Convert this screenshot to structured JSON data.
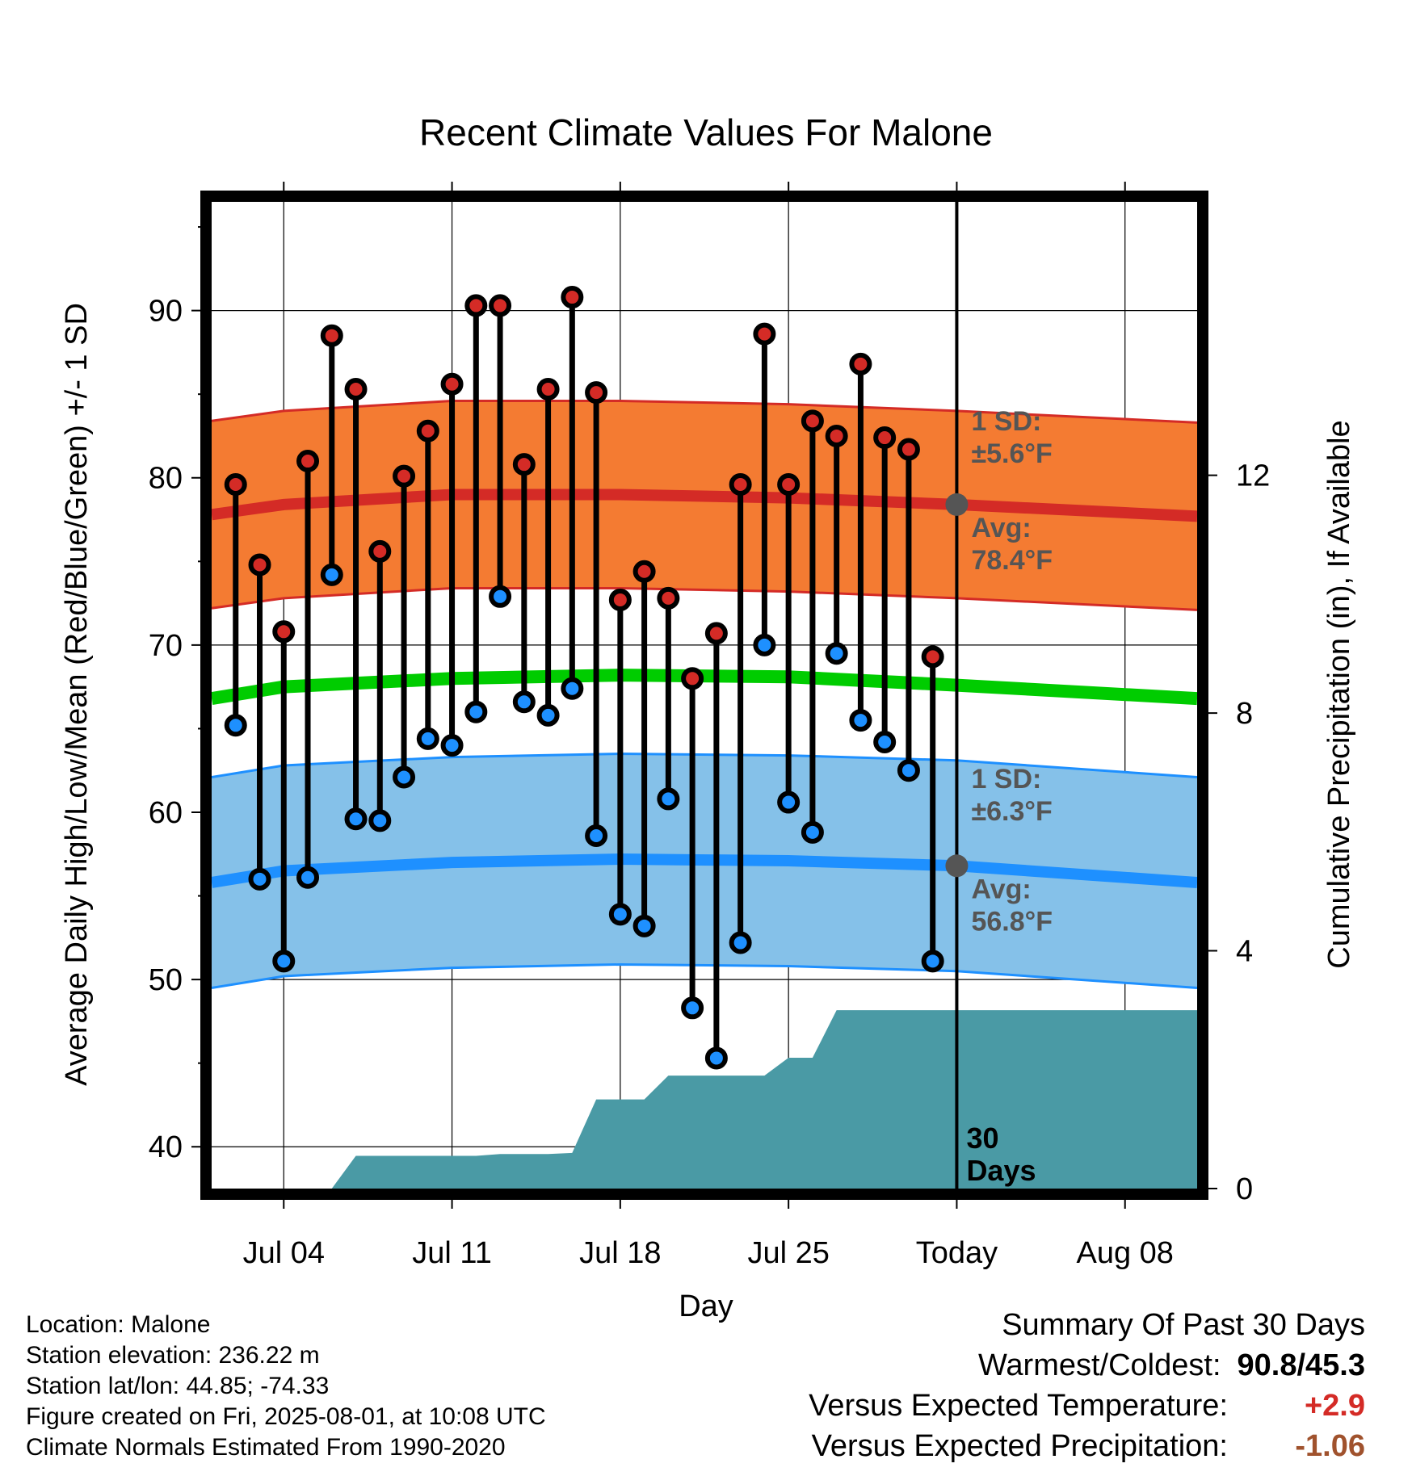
{
  "chart_data": {
    "type": "line",
    "title": "Recent Climate Values For Malone",
    "xlabel": "Day",
    "ylabel": "Average Daily High/Low/Mean (Red/Blue/Green) +/- 1 SD",
    "y2label": "Cumulative Precipitation (in), If Available",
    "xlim": [
      "2025-07-01",
      "2025-08-11"
    ],
    "ylim": [
      37.5,
      96.5
    ],
    "y2lim": [
      0,
      16.6
    ],
    "x_ticks": [
      {
        "date": "2025-07-04",
        "label": "Jul 04"
      },
      {
        "date": "2025-07-11",
        "label": "Jul 11"
      },
      {
        "date": "2025-07-18",
        "label": "Jul 18"
      },
      {
        "date": "2025-07-25",
        "label": "Jul 25"
      },
      {
        "date": "2025-08-01",
        "label": "Today"
      },
      {
        "date": "2025-08-08",
        "label": "Aug 08"
      }
    ],
    "y_ticks": [
      40,
      50,
      60,
      70,
      80,
      90
    ],
    "y2_ticks": [
      0,
      4,
      8,
      12
    ],
    "today": "2025-08-01",
    "grid": true,
    "normals": {
      "dates": [
        "2025-07-01",
        "2025-07-04",
        "2025-07-11",
        "2025-07-18",
        "2025-07-25",
        "2025-08-01",
        "2025-08-11"
      ],
      "high_avg": [
        77.8,
        78.4,
        79.0,
        79.0,
        78.8,
        78.4,
        77.7
      ],
      "high_sd": 5.6,
      "low_avg": [
        55.8,
        56.5,
        57.0,
        57.2,
        57.1,
        56.8,
        55.8
      ],
      "low_sd": 6.3,
      "mean_avg": [
        66.8,
        67.5,
        68.0,
        68.2,
        68.1,
        67.6,
        66.8
      ]
    },
    "series": [
      {
        "name": "High",
        "x": [
          "2025-07-02",
          "2025-07-03",
          "2025-07-04",
          "2025-07-05",
          "2025-07-06",
          "2025-07-07",
          "2025-07-08",
          "2025-07-09",
          "2025-07-10",
          "2025-07-11",
          "2025-07-12",
          "2025-07-13",
          "2025-07-14",
          "2025-07-15",
          "2025-07-16",
          "2025-07-17",
          "2025-07-18",
          "2025-07-19",
          "2025-07-20",
          "2025-07-21",
          "2025-07-22",
          "2025-07-23",
          "2025-07-24",
          "2025-07-25",
          "2025-07-26",
          "2025-07-27",
          "2025-07-28",
          "2025-07-29",
          "2025-07-30",
          "2025-07-31"
        ],
        "values": [
          79.6,
          74.8,
          70.8,
          81.0,
          88.5,
          85.3,
          75.6,
          80.1,
          82.8,
          85.6,
          90.3,
          90.3,
          80.8,
          85.3,
          90.8,
          85.1,
          72.7,
          74.4,
          72.8,
          68.0,
          70.7,
          79.6,
          88.6,
          79.6,
          83.4,
          82.5,
          86.8,
          82.4,
          81.7,
          69.3
        ]
      },
      {
        "name": "Low",
        "x": [
          "2025-07-02",
          "2025-07-03",
          "2025-07-04",
          "2025-07-05",
          "2025-07-06",
          "2025-07-07",
          "2025-07-08",
          "2025-07-09",
          "2025-07-10",
          "2025-07-11",
          "2025-07-12",
          "2025-07-13",
          "2025-07-14",
          "2025-07-15",
          "2025-07-16",
          "2025-07-17",
          "2025-07-18",
          "2025-07-19",
          "2025-07-20",
          "2025-07-21",
          "2025-07-22",
          "2025-07-23",
          "2025-07-24",
          "2025-07-25",
          "2025-07-26",
          "2025-07-27",
          "2025-07-28",
          "2025-07-29",
          "2025-07-30",
          "2025-07-31"
        ],
        "values": [
          65.2,
          56.0,
          51.1,
          56.1,
          74.2,
          59.6,
          59.5,
          62.1,
          64.4,
          64.0,
          66.0,
          72.9,
          66.6,
          65.8,
          67.4,
          58.6,
          53.9,
          53.2,
          60.8,
          48.3,
          45.3,
          52.2,
          70.0,
          60.6,
          58.8,
          69.5,
          65.5,
          64.2,
          62.5,
          51.1
        ]
      }
    ],
    "precipitation": {
      "x": [
        "2025-07-01",
        "2025-07-03",
        "2025-07-04",
        "2025-07-05",
        "2025-07-06",
        "2025-07-07",
        "2025-07-08",
        "2025-07-09",
        "2025-07-10",
        "2025-07-11",
        "2025-07-12",
        "2025-07-13",
        "2025-07-14",
        "2025-07-15",
        "2025-07-16",
        "2025-07-17",
        "2025-07-18",
        "2025-07-19",
        "2025-07-20",
        "2025-07-21",
        "2025-07-22",
        "2025-07-23",
        "2025-07-24",
        "2025-07-25",
        "2025-07-26",
        "2025-07-27",
        "2025-07-28",
        "2025-07-29",
        "2025-07-30",
        "2025-07-31",
        "2025-08-01",
        "2025-08-11"
      ],
      "values": [
        0,
        0,
        0,
        0,
        0,
        0.55,
        0.55,
        0.55,
        0.55,
        0.55,
        0.55,
        0.58,
        0.58,
        0.58,
        0.6,
        1.5,
        1.5,
        1.5,
        1.9,
        1.9,
        1.9,
        1.9,
        1.9,
        2.2,
        2.2,
        3.0,
        3.0,
        3.0,
        3.0,
        3.0,
        3.0,
        3.0
      ]
    },
    "annotations": [
      {
        "label": "1 SD:",
        "value": "±5.6°F"
      },
      {
        "label": "Avg:",
        "value": "78.4°F"
      },
      {
        "label": "1 SD:",
        "value": "±6.3°F"
      },
      {
        "label": "Avg:",
        "value": "56.8°F"
      },
      {
        "label": "30",
        "value": "Days"
      }
    ],
    "colors": {
      "high": "#d42b26",
      "high_band": "#f47b32",
      "low": "#1e90ff",
      "low_band": "#85c1e9",
      "mean": "#00cc00",
      "precip": "#4a9aa5",
      "annotation": "#555555"
    }
  },
  "info": {
    "location": "Location: Malone",
    "elevation": "Station elevation: 236.22 m",
    "latlon": "Station lat/lon: 44.85; -74.33",
    "created": "Figure created on Fri, 2025-08-01, at 10:08 UTC",
    "normals": "Climate Normals Estimated From 1990-2020"
  },
  "summary": {
    "title": "Summary Of Past 30 Days",
    "warmest_label": "Warmest/Coldest:",
    "warmest_value": "90.8/45.3",
    "temp_label": "Versus Expected Temperature:",
    "temp_value": "+2.9",
    "temp_color": "#d42b26",
    "precip_label": "Versus Expected Precipitation:",
    "precip_value": "-1.06",
    "precip_color": "#a0522d"
  }
}
